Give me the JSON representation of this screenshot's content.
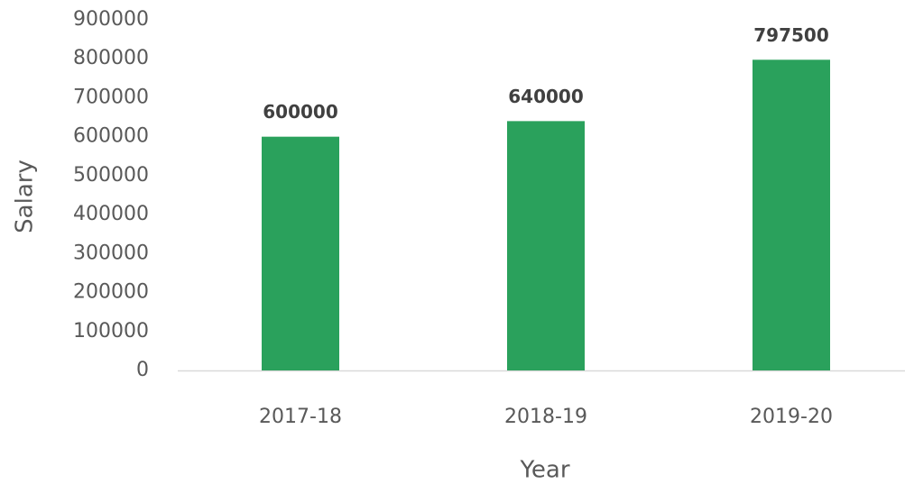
{
  "chart_data": {
    "type": "bar",
    "x_label": "Year",
    "y_label": "Salary",
    "categories": [
      "2017-18",
      "2018-19",
      "2019-20"
    ],
    "values": [
      600000,
      640000,
      797500
    ],
    "color": "#2aa15c",
    "ylim": [
      0,
      900000
    ],
    "yticks": [
      0,
      100000,
      200000,
      300000,
      400000,
      500000,
      600000,
      700000,
      800000,
      900000
    ],
    "grid": false
  }
}
